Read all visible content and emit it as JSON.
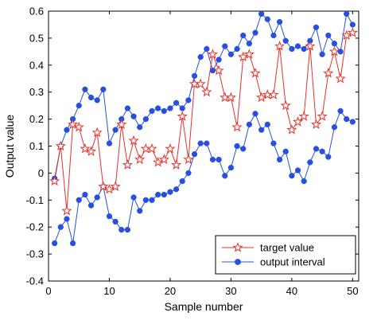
{
  "chart_data": {
    "type": "line",
    "title": "",
    "xlabel": "Sample number",
    "ylabel": "Output value",
    "xlim": [
      0,
      51
    ],
    "ylim": [
      -0.4,
      0.6
    ],
    "x_ticks": [
      0,
      10,
      20,
      30,
      40,
      50
    ],
    "y_ticks": [
      -0.4,
      -0.3,
      -0.2,
      -0.1,
      0,
      0.1,
      0.2,
      0.3,
      0.4,
      0.5,
      0.6
    ],
    "x_tick_labels": [
      "0",
      "10",
      "20",
      "30",
      "40",
      "50"
    ],
    "y_tick_labels": [
      "-0.4",
      "-0.3",
      "-0.2",
      "-0.1",
      "0",
      "0.1",
      "0.2",
      "0.3",
      "0.4",
      "0.5",
      "0.6"
    ],
    "grid": false,
    "legend_position": "bottom-right",
    "x": [
      1,
      2,
      3,
      4,
      5,
      6,
      7,
      8,
      9,
      10,
      11,
      12,
      13,
      14,
      15,
      16,
      17,
      18,
      19,
      20,
      21,
      22,
      23,
      24,
      25,
      26,
      27,
      28,
      29,
      30,
      31,
      32,
      33,
      34,
      35,
      36,
      37,
      38,
      39,
      40,
      41,
      42,
      43,
      44,
      45,
      46,
      47,
      48,
      49,
      50
    ],
    "series": [
      {
        "name": "target value",
        "color": "#e8312a",
        "marker": "star",
        "values": [
          -0.03,
          0.1,
          -0.14,
          0.18,
          0.17,
          0.09,
          0.08,
          0.15,
          -0.05,
          -0.06,
          -0.05,
          0.18,
          0.03,
          0.12,
          0.05,
          0.09,
          0.09,
          0.04,
          0.05,
          0.09,
          0.03,
          0.21,
          0.05,
          0.33,
          0.33,
          0.3,
          0.44,
          0.38,
          0.28,
          0.28,
          0.17,
          0.43,
          0.44,
          0.37,
          0.28,
          0.29,
          0.29,
          0.47,
          0.25,
          0.16,
          0.19,
          0.21,
          0.47,
          0.18,
          0.21,
          0.37,
          0.45,
          0.35,
          0.51,
          0.52
        ]
      },
      {
        "name": "output interval",
        "color": "#2850e0",
        "marker": "circle",
        "series_upper": [
          -0.02,
          0.1,
          0.16,
          0.2,
          0.25,
          0.31,
          0.28,
          0.27,
          0.31,
          0.11,
          0.16,
          0.2,
          0.24,
          0.21,
          0.17,
          0.2,
          0.23,
          0.24,
          0.23,
          0.24,
          0.26,
          0.24,
          0.27,
          0.36,
          0.43,
          0.46,
          0.38,
          0.42,
          0.47,
          0.44,
          0.46,
          0.51,
          0.48,
          0.52,
          0.59,
          0.57,
          0.51,
          0.56,
          0.49,
          0.46,
          0.47,
          0.46,
          0.49,
          0.54,
          0.44,
          0.51,
          0.48,
          0.45,
          0.59,
          0.55
        ],
        "series_lower": [
          -0.26,
          -0.2,
          -0.17,
          -0.26,
          -0.1,
          -0.08,
          -0.12,
          -0.09,
          -0.05,
          -0.16,
          -0.18,
          -0.21,
          -0.21,
          -0.09,
          -0.14,
          -0.1,
          -0.1,
          -0.08,
          -0.08,
          -0.07,
          -0.06,
          -0.03,
          0.0,
          0.07,
          0.11,
          0.11,
          0.05,
          0.05,
          -0.01,
          0.02,
          0.1,
          0.09,
          0.18,
          0.22,
          0.16,
          0.18,
          0.11,
          0.05,
          0.08,
          -0.01,
          0.01,
          -0.03,
          0.04,
          0.09,
          0.08,
          0.06,
          0.17,
          0.23,
          0.2,
          0.19
        ]
      }
    ]
  }
}
